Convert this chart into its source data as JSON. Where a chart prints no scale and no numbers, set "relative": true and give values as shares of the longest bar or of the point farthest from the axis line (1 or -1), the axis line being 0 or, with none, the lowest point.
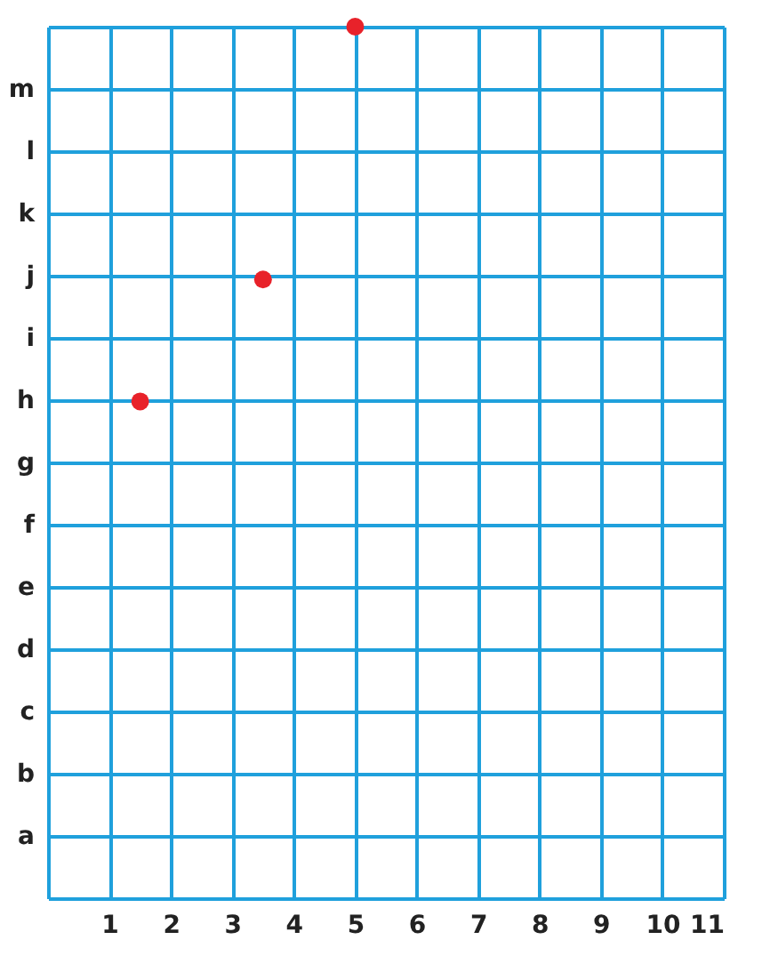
{
  "chart_data": {
    "type": "scatter",
    "x": [
      1.5,
      3.5,
      5
    ],
    "values": [
      0.57,
      0.71,
      1
    ],
    "relative": true,
    "color": "#e8222a",
    "marker": "circle",
    "grid": true,
    "xlim": [
      0,
      11
    ],
    "xticks": [
      {
        "value": 0,
        "label": null
      },
      1,
      2,
      3,
      4,
      5,
      6,
      7,
      8,
      9,
      10,
      11
    ],
    "y_categories": [
      null,
      "m",
      "l",
      "k",
      "j",
      "i",
      "h",
      "g",
      "f",
      "e",
      "d",
      "c",
      "b",
      "a",
      null
    ]
  }
}
